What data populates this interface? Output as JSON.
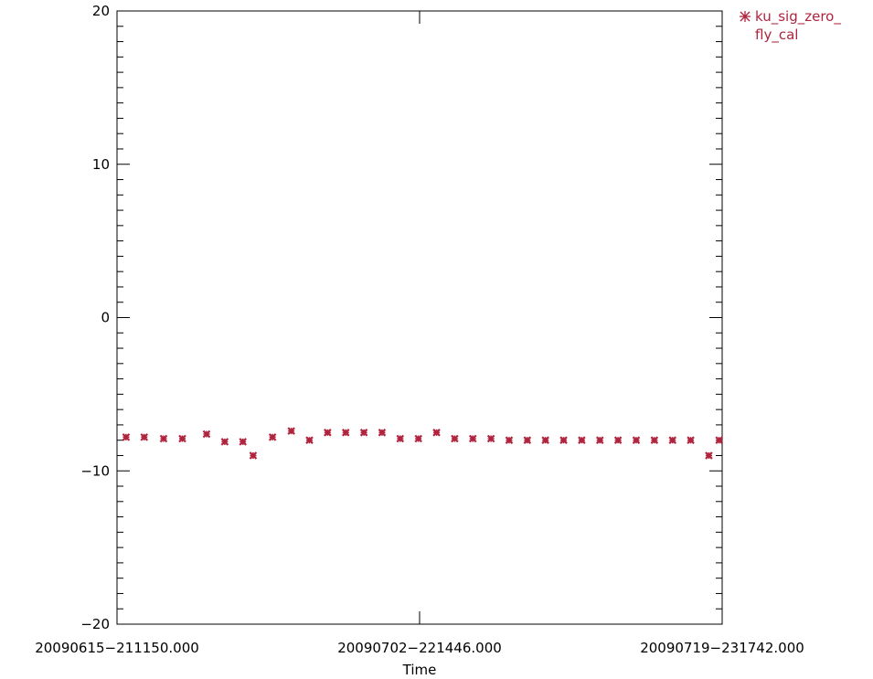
{
  "chart_data": {
    "type": "scatter",
    "xlabel": "Time",
    "ylabel": "",
    "title": "",
    "ylim": [
      -20,
      20
    ],
    "y_ticks": [
      "20",
      "10",
      "0",
      "−10",
      "−20"
    ],
    "x_ticks": [
      "20090615−211150.000",
      "20090702−221446.000",
      "20090719−231742.000"
    ],
    "x_tick_positions": [
      0,
      0.5,
      1
    ],
    "legend_placement": "top-right, outside plot",
    "grid": false,
    "series": [
      {
        "name": "ku_sig_zero_fly_cal",
        "legend_lines": [
          "ku_sig_zero_",
          "fly_cal"
        ],
        "marker": "asterisk",
        "color": "#b0243e",
        "x": [
          0.015,
          0.045,
          0.077,
          0.108,
          0.148,
          0.178,
          0.208,
          0.225,
          0.257,
          0.288,
          0.318,
          0.348,
          0.378,
          0.408,
          0.438,
          0.468,
          0.498,
          0.528,
          0.558,
          0.588,
          0.618,
          0.648,
          0.678,
          0.708,
          0.738,
          0.768,
          0.798,
          0.828,
          0.858,
          0.888,
          0.918,
          0.948,
          0.978,
          0.995
        ],
        "y": [
          -7.8,
          -7.8,
          -7.9,
          -7.9,
          -7.6,
          -8.1,
          -8.1,
          -9.0,
          -7.8,
          -7.4,
          -8.0,
          -7.5,
          -7.5,
          -7.5,
          -7.5,
          -7.9,
          -7.9,
          -7.5,
          -7.9,
          -7.9,
          -7.9,
          -8.0,
          -8.0,
          -8.0,
          -8.0,
          -8.0,
          -8.0,
          -8.0,
          -8.0,
          -8.0,
          -8.0,
          -8.0,
          -9.0,
          -8.0
        ]
      }
    ]
  }
}
